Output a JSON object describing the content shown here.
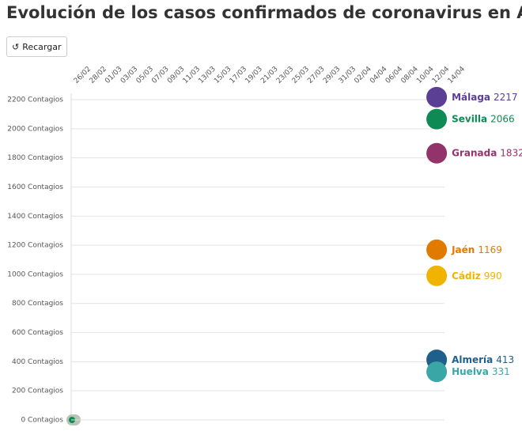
{
  "chart_data": {
    "type": "bubble",
    "title": "Evolución de los casos confirmados de coronavirus en Andalucía",
    "button": "Recargar",
    "categories": [
      "26/02",
      "28/02",
      "01/03",
      "03/03",
      "05/03",
      "07/03",
      "09/03",
      "11/03",
      "13/03",
      "15/03",
      "17/03",
      "19/03",
      "21/03",
      "23/03",
      "25/03",
      "27/03",
      "29/03",
      "31/03",
      "02/04",
      "04/04",
      "06/04",
      "08/04",
      "10/04",
      "12/04",
      "14/04"
    ],
    "ylim": [
      0,
      2200
    ],
    "yticks": [
      {
        "value": 0,
        "label": "0 Contagios"
      },
      {
        "value": 200,
        "label": "200 Contagios"
      },
      {
        "value": 400,
        "label": "400 Contagios"
      },
      {
        "value": 600,
        "label": "600 Contagios"
      },
      {
        "value": 800,
        "label": "800 Contagios"
      },
      {
        "value": 1000,
        "label": "1000 Contagios"
      },
      {
        "value": 1200,
        "label": "1200 Contagios"
      },
      {
        "value": 1400,
        "label": "1400 Contagios"
      },
      {
        "value": 1600,
        "label": "1600 Contagios"
      },
      {
        "value": 1800,
        "label": "1800 Contagios"
      },
      {
        "value": 2000,
        "label": "2000 Contagios"
      },
      {
        "value": 2200,
        "label": "2200 Contagios"
      }
    ],
    "grid": true,
    "series": [
      {
        "name": "Málaga",
        "color": "#5b3f94",
        "x": "12/04",
        "values": [
          2217
        ]
      },
      {
        "name": "Sevilla",
        "color": "#0e8a55",
        "x": "12/04",
        "values": [
          2066
        ]
      },
      {
        "name": "Granada",
        "color": "#93336b",
        "x": "12/04",
        "values": [
          1832
        ]
      },
      {
        "name": "Jaén",
        "color": "#e07b00",
        "x": "12/04",
        "values": [
          1169
        ]
      },
      {
        "name": "Cádiz",
        "color": "#f0b400",
        "x": "12/04",
        "values": [
          990
        ]
      },
      {
        "name": "Almería",
        "color": "#1f5f8b",
        "x": "12/04",
        "values": [
          413
        ]
      },
      {
        "name": "Huelva",
        "color": "#3aa6a6",
        "x": "12/04",
        "values": [
          331
        ]
      }
    ]
  }
}
